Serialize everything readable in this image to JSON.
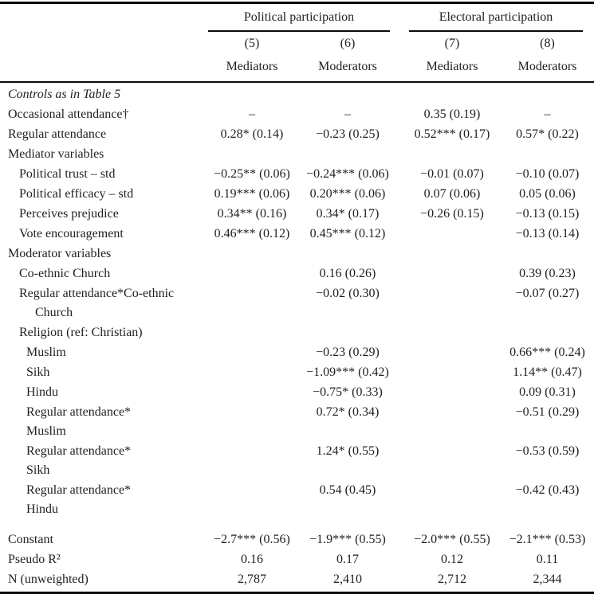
{
  "table": {
    "col_groups": [
      {
        "label": "Political participation"
      },
      {
        "label": "Electoral participation"
      }
    ],
    "columns": [
      {
        "number": "(5)",
        "label": "Mediators"
      },
      {
        "number": "(6)",
        "label": "Moderators"
      },
      {
        "number": "(7)",
        "label": "Mediators"
      },
      {
        "number": "(8)",
        "label": "Moderators"
      }
    ],
    "rows": [
      {
        "label": "Controls as in Table 5",
        "italic": true,
        "indent": 0,
        "values": [
          "",
          "",
          "",
          ""
        ]
      },
      {
        "label": "Occasional attendance†",
        "indent": 0,
        "values": [
          "–",
          "–",
          "0.35 (0.19)",
          "–"
        ]
      },
      {
        "label": "Regular attendance",
        "indent": 0,
        "values": [
          "0.28* (0.14)",
          "−0.23 (0.25)",
          "0.52*** (0.17)",
          "0.57* (0.22)"
        ]
      },
      {
        "label": "Mediator variables",
        "indent": 0,
        "values": [
          "",
          "",
          "",
          ""
        ]
      },
      {
        "label": "Political trust – std",
        "indent": 1,
        "values": [
          "−0.25** (0.06)",
          "−0.24*** (0.06)",
          "−0.01 (0.07)",
          "−0.10 (0.07)"
        ]
      },
      {
        "label": "Political efficacy – std",
        "indent": 1,
        "values": [
          "0.19*** (0.06)",
          "0.20*** (0.06)",
          "0.07 (0.06)",
          "0.05 (0.06)"
        ]
      },
      {
        "label": "Perceives prejudice",
        "indent": 1,
        "values": [
          "0.34** (0.16)",
          "0.34* (0.17)",
          "−0.26 (0.15)",
          "−0.13 (0.15)"
        ]
      },
      {
        "label": "Vote encouragement",
        "indent": 1,
        "values": [
          "0.46*** (0.12)",
          "0.45*** (0.12)",
          "",
          "−0.13 (0.14)"
        ]
      },
      {
        "label": "Moderator variables",
        "indent": 0,
        "values": [
          "",
          "",
          "",
          ""
        ]
      },
      {
        "label": "Co-ethnic Church",
        "indent": 1,
        "values": [
          "",
          "0.16 (0.26)",
          "",
          "0.39 (0.23)"
        ]
      },
      {
        "label": "Regular attendance*Co-ethnic",
        "label2": "Church",
        "indent": 1,
        "indent2": 3,
        "values": [
          "",
          "−0.02 (0.30)",
          "",
          "−0.07 (0.27)"
        ]
      },
      {
        "label": "Religion (ref: Christian)",
        "indent": 1,
        "values": [
          "",
          "",
          "",
          ""
        ]
      },
      {
        "label": "Muslim",
        "indent": 2,
        "values": [
          "",
          "−0.23 (0.29)",
          "",
          "0.66*** (0.24)"
        ]
      },
      {
        "label": "Sikh",
        "indent": 2,
        "values": [
          "",
          "−1.09*** (0.42)",
          "",
          "1.14** (0.47)"
        ]
      },
      {
        "label": "Hindu",
        "indent": 2,
        "values": [
          "",
          "−0.75* (0.33)",
          "",
          "0.09 (0.31)"
        ]
      },
      {
        "label": "Regular attendance*",
        "label2": "Muslim",
        "indent": 2,
        "indent2": 2,
        "values": [
          "",
          "0.72* (0.34)",
          "",
          "−0.51 (0.29)"
        ]
      },
      {
        "label": "Regular attendance*",
        "label2": "Sikh",
        "indent": 2,
        "indent2": 2,
        "values": [
          "",
          "1.24* (0.55)",
          "",
          "−0.53 (0.59)"
        ]
      },
      {
        "label": "Regular attendance*",
        "label2": "Hindu",
        "indent": 2,
        "indent2": 2,
        "values": [
          "",
          "0.54 (0.45)",
          "",
          "−0.42 (0.43)"
        ]
      }
    ],
    "footer_rows": [
      {
        "label": "Constant",
        "indent": 0,
        "values": [
          "−2.7*** (0.56)",
          "−1.9*** (0.55)",
          "−2.0*** (0.55)",
          "−2.1*** (0.53)"
        ]
      },
      {
        "label": "Pseudo R²",
        "indent": 0,
        "values": [
          "0.16",
          "0.17",
          "0.12",
          "0.11"
        ]
      },
      {
        "label": "N (unweighted)",
        "indent": 0,
        "values": [
          "2,787",
          "2,410",
          "2,712",
          "2,344"
        ]
      }
    ]
  }
}
